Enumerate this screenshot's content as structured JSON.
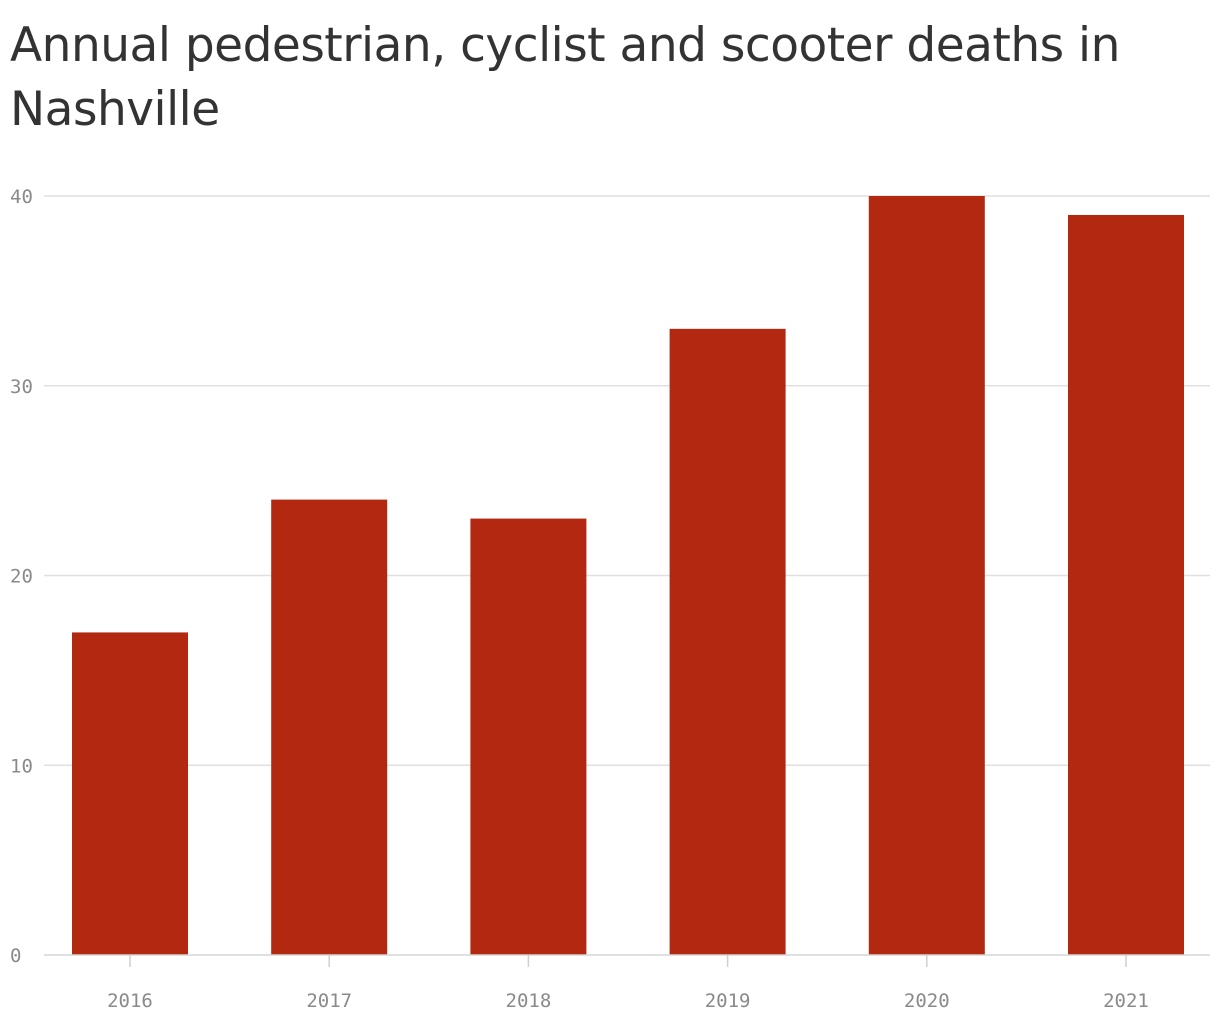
{
  "chart_data": {
    "type": "bar",
    "title": "Annual pedestrian, cyclist and scooter deaths in Nashville",
    "categories": [
      "2016",
      "2017",
      "2018",
      "2019",
      "2020",
      "2021"
    ],
    "values": [
      17,
      24,
      23,
      33,
      40,
      39
    ],
    "ylim": [
      0,
      40
    ],
    "yticks": [
      0,
      10,
      20,
      30,
      40
    ],
    "grid": true,
    "bar_color": "#b22811"
  }
}
